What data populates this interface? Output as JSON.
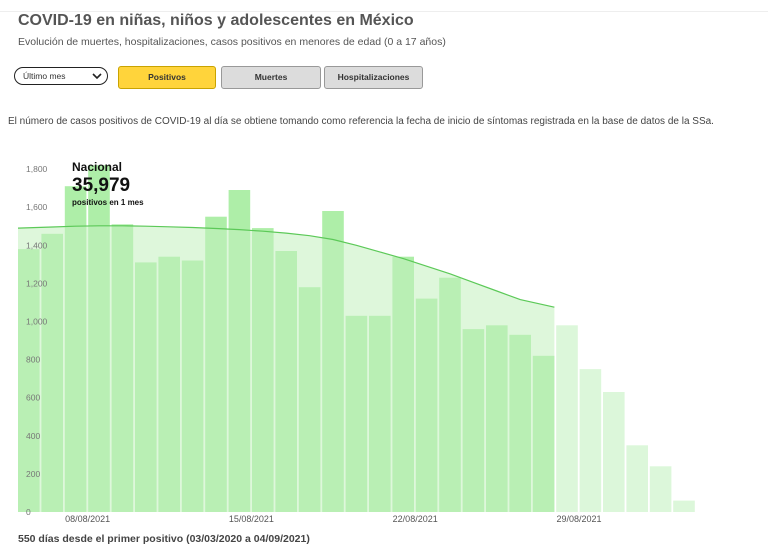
{
  "header": {
    "title": "COVID-19 en niñas, niños y adolescentes en México",
    "subtitle": "Evolución de muertes, hospitalizaciones, casos positivos en menores de edad (0 a 17 años)"
  },
  "controls": {
    "period_select": "Último mes",
    "tabs": [
      {
        "label": "Positivos",
        "active": true
      },
      {
        "label": "Muertes",
        "active": false
      },
      {
        "label": "Hospitalizaciones",
        "active": false
      }
    ]
  },
  "note": "El número de casos positivos de COVID-19 al día se obtiene tomando como referencia la fecha de inicio de síntomas registrada en la base de datos de la SSa.",
  "summary": {
    "label": "Nacional",
    "value": "35,979",
    "caption": "positivos en 1 mes"
  },
  "footer": "550 días desde el primer positivo (03/03/2020 a 04/09/2021)",
  "colors": {
    "bar": "#aeeea8",
    "bar_recent": "#dcf7da",
    "area": "#c2f0bd",
    "line": "#5cc958",
    "tab_active": "#ffd43b"
  },
  "chart_data": {
    "type": "bar",
    "start_date": "06/08/2021",
    "categories": [
      "06/08/2021",
      "07/08/2021",
      "08/08/2021",
      "09/08/2021",
      "10/08/2021",
      "11/08/2021",
      "12/08/2021",
      "13/08/2021",
      "14/08/2021",
      "15/08/2021",
      "16/08/2021",
      "17/08/2021",
      "18/08/2021",
      "19/08/2021",
      "20/08/2021",
      "21/08/2021",
      "22/08/2021",
      "23/08/2021",
      "24/08/2021",
      "25/08/2021",
      "26/08/2021",
      "27/08/2021",
      "28/08/2021",
      "29/08/2021",
      "30/08/2021",
      "31/08/2021",
      "01/09/2021",
      "02/09/2021",
      "03/09/2021"
    ],
    "values": [
      1380,
      1460,
      1710,
      1820,
      1510,
      1310,
      1340,
      1320,
      1550,
      1690,
      1490,
      1370,
      1180,
      1580,
      1030,
      1030,
      1340,
      1120,
      1230,
      960,
      980,
      930,
      820,
      980,
      750,
      630,
      350,
      240,
      60
    ],
    "recent_from_index": 23,
    "smoothed": [
      1490,
      1496,
      1500,
      1502,
      1502,
      1500,
      1497,
      1493,
      1488,
      1482,
      1474,
      1464,
      1450,
      1430,
      1400,
      1365,
      1330,
      1290,
      1250,
      1205,
      1160,
      1115,
      1075
    ],
    "x_tick_labels": [
      "08/08/2021",
      "15/08/2021",
      "22/08/2021",
      "29/08/2021"
    ],
    "x_tick_indices": [
      2,
      9,
      16,
      23
    ],
    "y_ticks": [
      0,
      200,
      400,
      600,
      800,
      "1,000",
      "1,200",
      "1,400",
      "1,600",
      "1,800"
    ],
    "ylim": [
      0,
      1900
    ],
    "grid": false,
    "title": "",
    "xlabel": "",
    "ylabel": ""
  }
}
